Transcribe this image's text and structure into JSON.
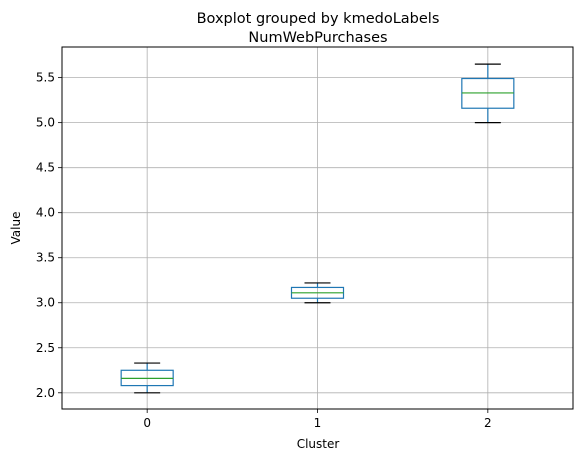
{
  "chart_data": {
    "type": "boxplot",
    "suptitle": "Boxplot grouped by kmedoLabels",
    "title": "NumWebPurchases",
    "xlabel": "Cluster",
    "ylabel": "Value",
    "categories": [
      "0",
      "1",
      "2"
    ],
    "ylim": [
      1.82,
      5.84
    ],
    "yticks": [
      2.0,
      2.5,
      3.0,
      3.5,
      4.0,
      4.5,
      5.0,
      5.5
    ],
    "ytick_labels": [
      "2.0",
      "2.5",
      "3.0",
      "3.5",
      "4.0",
      "4.5",
      "5.0",
      "5.5"
    ],
    "grid": true,
    "boxes": [
      {
        "category": "0",
        "whisker_low": 2.0,
        "q1": 2.08,
        "median": 2.16,
        "q3": 2.25,
        "whisker_high": 2.33
      },
      {
        "category": "1",
        "whisker_low": 3.0,
        "q1": 3.05,
        "median": 3.11,
        "q3": 3.17,
        "whisker_high": 3.22
      },
      {
        "category": "2",
        "whisker_low": 5.0,
        "q1": 5.16,
        "median": 5.33,
        "q3": 5.49,
        "whisker_high": 5.65
      }
    ],
    "colors": {
      "box": "#1f77b4",
      "median": "#2ca02c",
      "whisker": "#000000",
      "grid": "#b0b0b0"
    }
  }
}
